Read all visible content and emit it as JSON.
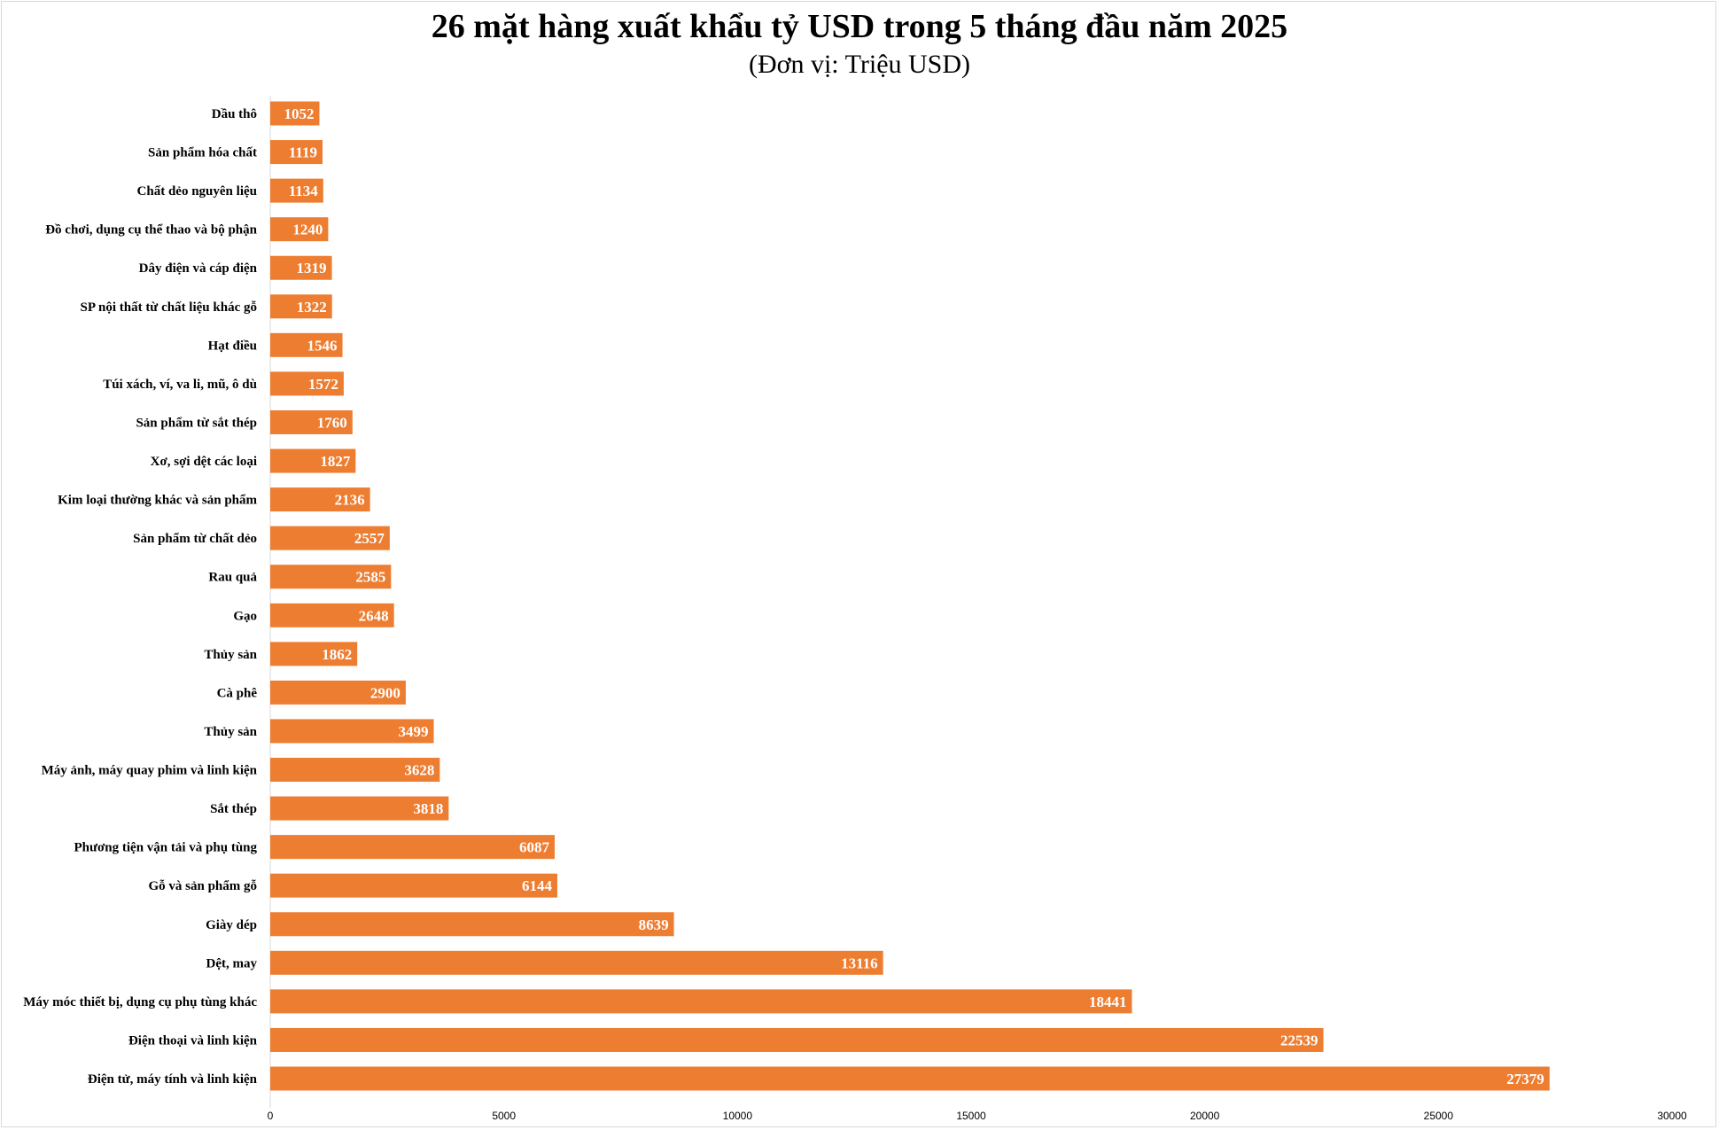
{
  "chart_data": {
    "type": "bar",
    "orientation": "horizontal",
    "title": "26 mặt hàng xuất khẩu tỷ USD trong 5 tháng đầu năm 2025",
    "subtitle": "(Đơn vị: Triệu USD)",
    "categories": [
      "Dầu thô",
      "Sản phẩm hóa chất",
      "Chất dẻo nguyên liệu",
      "Đồ chơi, dụng cụ thể thao và bộ phận",
      "Dây điện và cáp điện",
      "SP nội thất từ chất liệu khác gỗ",
      "Hạt điều",
      "Túi xách, ví, va li, mũ, ô dù",
      "Sản phẩm từ sắt thép",
      "Xơ, sợi dệt các loại",
      "Kim loại thường khác và sản phẩm",
      "Sản phẩm từ chất dẻo",
      "Rau quả",
      "Gạo",
      "Thủy sản",
      "Cà phê",
      "Thủy sản",
      "Máy ảnh, máy quay phim và linh kiện",
      "Sắt thép",
      "Phương tiện vận tải và phụ tùng",
      "Gỗ và sản phẩm gỗ",
      "Giày dép",
      "Dệt, may",
      "Máy móc thiết bị, dụng cụ phụ tùng khác",
      "Điện thoại và linh kiện",
      "Điện tử, máy tính và linh kiện"
    ],
    "values": [
      1052,
      1119,
      1134,
      1240,
      1319,
      1322,
      1546,
      1572,
      1760,
      1827,
      2136,
      2557,
      2585,
      2648,
      1862,
      2900,
      3499,
      3628,
      3818,
      6087,
      6144,
      8639,
      13116,
      18441,
      22539,
      27379
    ],
    "xlim": [
      0,
      30000
    ],
    "xticks": [
      "0",
      "5000",
      "10000",
      "15000",
      "20000",
      "25000",
      "30000"
    ],
    "bar_color": "#ed7d31",
    "label_color": "#ffffff",
    "grid": false,
    "legend": false
  }
}
